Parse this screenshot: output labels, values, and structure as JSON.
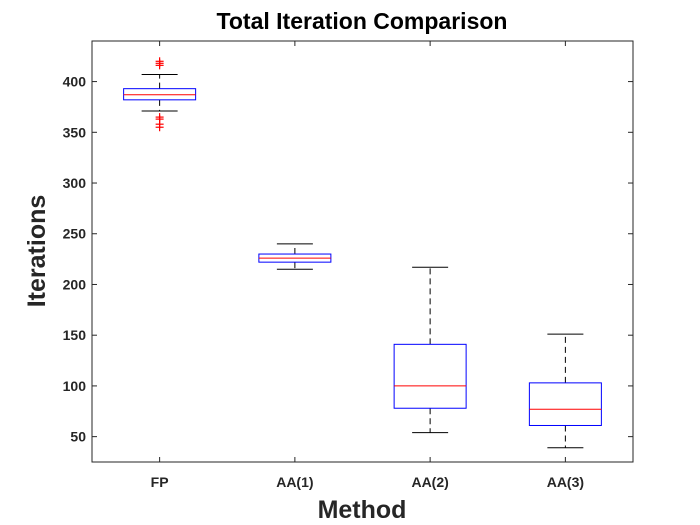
{
  "chart_data": {
    "type": "box",
    "title": "Total Iteration Comparison",
    "xlabel": "Method",
    "ylabel": "Iterations",
    "categories": [
      "FP",
      "AA(1)",
      "AA(2)",
      "AA(3)"
    ],
    "ylim": [
      25,
      440
    ],
    "yticks": [
      50,
      100,
      150,
      200,
      250,
      300,
      350,
      400
    ],
    "grid": false,
    "boxes": [
      {
        "label": "FP",
        "whisker_low": 371,
        "q1": 382,
        "median": 387,
        "q3": 393,
        "whisker_high": 407,
        "outliers": [
          355,
          358,
          363,
          365,
          416,
          418,
          420
        ]
      },
      {
        "label": "AA(1)",
        "whisker_low": 215,
        "q1": 222,
        "median": 226,
        "q3": 230,
        "whisker_high": 240,
        "outliers": []
      },
      {
        "label": "AA(2)",
        "whisker_low": 54,
        "q1": 78,
        "median": 100,
        "q3": 141,
        "whisker_high": 217,
        "outliers": []
      },
      {
        "label": "AA(3)",
        "whisker_low": 39,
        "q1": 61,
        "median": 77,
        "q3": 103,
        "whisker_high": 151,
        "outliers": []
      }
    ],
    "colors": {
      "box": "#0000ff",
      "median": "#ff0000",
      "whisker": "#000000",
      "outlier": "#ff0000",
      "axes": "#262626"
    }
  }
}
